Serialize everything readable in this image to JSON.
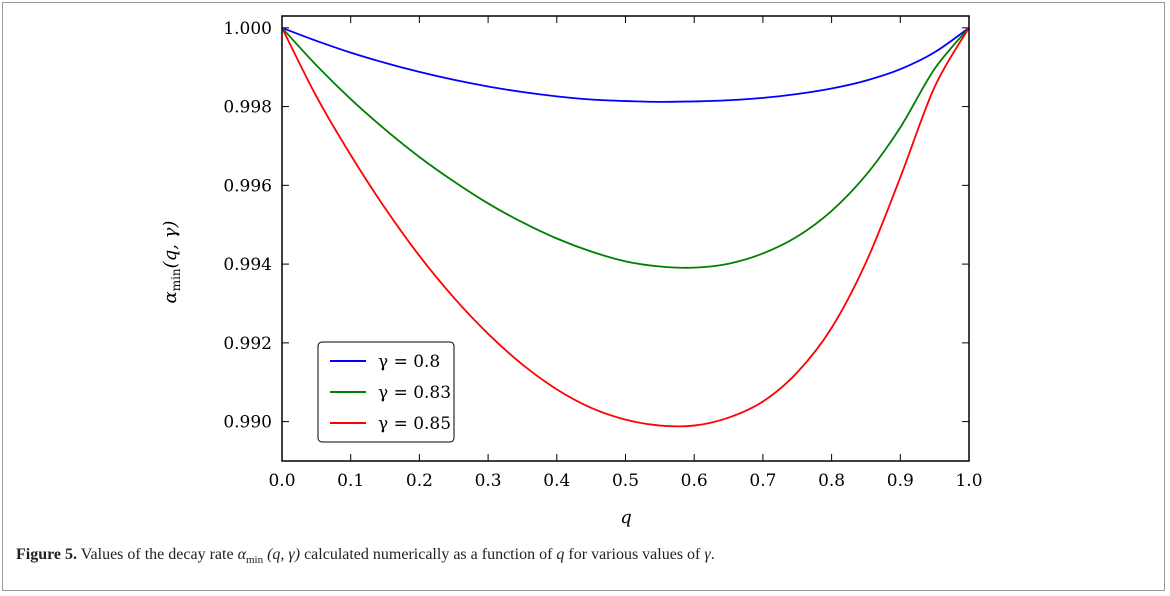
{
  "caption": {
    "label": "Figure 5.",
    "text_before_symbol": " Values of the decay rate ",
    "symbol": "α",
    "symbol_subscript": "min",
    "args": " (q, γ)",
    "text_after": " calculated numerically as a function of ",
    "var_q": "q",
    "text_tail": " for various values of ",
    "var_gamma": "γ",
    "period": "."
  },
  "chart_data": {
    "type": "line",
    "title": "",
    "xlabel": "q",
    "ylabel": "α",
    "ylabel_subscript": "min",
    "ylabel_args": "(q, γ)",
    "xlim": [
      0.0,
      1.0
    ],
    "ylim": [
      0.989,
      1.0003
    ],
    "xticks": [
      "0.0",
      "0.1",
      "0.2",
      "0.3",
      "0.4",
      "0.5",
      "0.6",
      "0.7",
      "0.8",
      "0.9",
      "1.0"
    ],
    "yticks": [
      "0.990",
      "0.992",
      "0.994",
      "0.996",
      "0.998",
      "1.000"
    ],
    "grid": false,
    "legend_position": "lower-left",
    "x": [
      0.0,
      0.05,
      0.1,
      0.15,
      0.2,
      0.25,
      0.3,
      0.35,
      0.4,
      0.45,
      0.5,
      0.55,
      0.6,
      0.65,
      0.7,
      0.75,
      0.8,
      0.85,
      0.9,
      0.95,
      1.0
    ],
    "series": [
      {
        "name": "γ = 0.8",
        "color": "#0000ff",
        "values": [
          1.0,
          0.99967,
          0.99937,
          0.99911,
          0.99888,
          0.99868,
          0.99851,
          0.99837,
          0.99826,
          0.99818,
          0.99814,
          0.99812,
          0.99813,
          0.99816,
          0.99822,
          0.99832,
          0.99846,
          0.99866,
          0.99895,
          0.99938,
          1.0
        ]
      },
      {
        "name": "γ = 0.83",
        "color": "#008000",
        "values": [
          1.0,
          0.99905,
          0.99819,
          0.99742,
          0.99672,
          0.9961,
          0.99554,
          0.99506,
          0.99465,
          0.99432,
          0.99407,
          0.99394,
          0.99391,
          0.99401,
          0.99427,
          0.9947,
          0.99535,
          0.99626,
          0.99747,
          0.99896,
          1.0
        ]
      },
      {
        "name": "γ = 0.85",
        "color": "#ff0000",
        "values": [
          1.0,
          0.99826,
          0.99677,
          0.99542,
          0.99421,
          0.99315,
          0.99223,
          0.99145,
          0.99082,
          0.99035,
          0.99005,
          0.9899,
          0.9899,
          0.9901,
          0.99051,
          0.99125,
          0.99238,
          0.99404,
          0.9962,
          0.9985,
          1.0
        ]
      }
    ]
  }
}
